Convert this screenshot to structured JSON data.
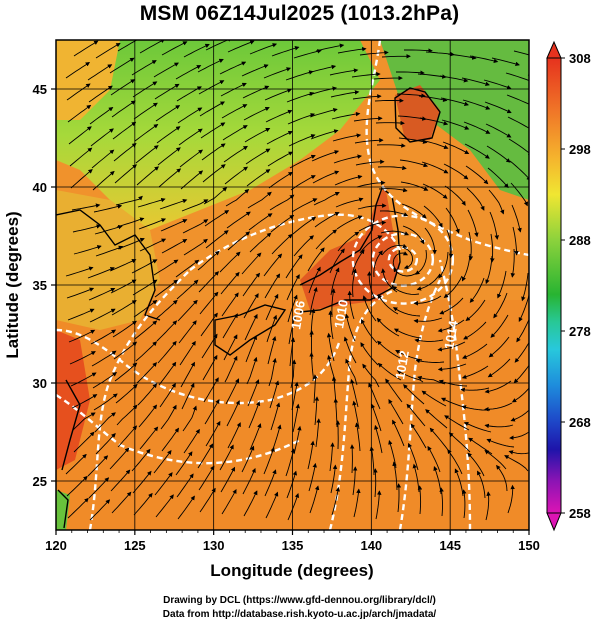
{
  "title": "MSM 06Z14Jul2025 (1013.2hPa)",
  "xlabel": "Longitude (degrees)",
  "ylabel": "Latitude  (degrees)",
  "x_ticks": [
    "120",
    "125",
    "130",
    "135",
    "140",
    "145",
    "150"
  ],
  "y_ticks": [
    "25",
    "30",
    "35",
    "40",
    "45"
  ],
  "colorbar": {
    "ticks": [
      "308",
      "298",
      "288",
      "278",
      "268",
      "258"
    ],
    "min": 258,
    "max": 308
  },
  "contour_labels": [
    "1010",
    "1012",
    "1014",
    "1006"
  ],
  "credits": {
    "line1": "Drawing by DCL (https://www.gfd-dennou.org/library/dcl/)",
    "line2": "Data from http://database.rish.kyoto-u.ac.jp/arch/jmadata/"
  },
  "map": {
    "lon_range": [
      120,
      150
    ],
    "lat_range": [
      22.5,
      47.5
    ],
    "low_center": {
      "lon": 142,
      "lat": 36.3
    },
    "colors": {
      "sea": "#f08a28",
      "land_north": "#7ad03a",
      "warm_land": "#e65a20"
    }
  }
}
